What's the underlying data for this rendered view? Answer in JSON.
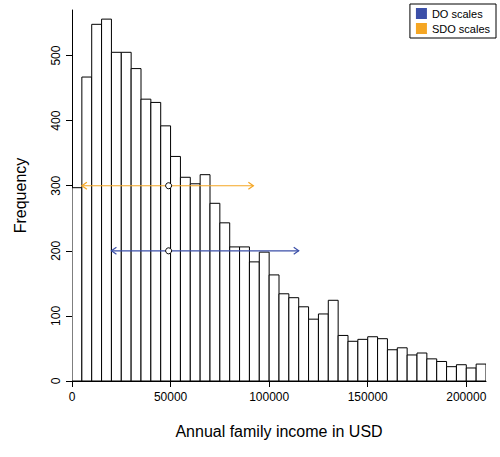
{
  "chart_data": {
    "type": "histogram",
    "x_label": "Annual family income in USD",
    "y_label": "Frequency",
    "bins": [
      0,
      5000,
      10000,
      15000,
      20000,
      25000,
      30000,
      35000,
      40000,
      45000,
      50000,
      55000,
      60000,
      65000,
      70000,
      75000,
      80000,
      85000,
      90000,
      95000,
      100000,
      105000,
      110000,
      115000,
      120000,
      125000,
      130000,
      135000,
      140000,
      145000,
      150000,
      155000,
      160000,
      165000,
      170000,
      175000,
      180000,
      185000,
      190000,
      195000,
      200000,
      205000,
      210000
    ],
    "counts": [
      297,
      467,
      548,
      556,
      505,
      505,
      480,
      433,
      428,
      392,
      345,
      313,
      303,
      317,
      273,
      243,
      206,
      206,
      183,
      198,
      163,
      134,
      128,
      114,
      95,
      103,
      124,
      70,
      61,
      64,
      68,
      65,
      48,
      51,
      40,
      43,
      34,
      30,
      22,
      25,
      20,
      26
    ],
    "intervals": [
      {
        "name": "DO scales",
        "color": "#3b4fa8",
        "y": 200,
        "low": 20000,
        "high": 115000,
        "center": 49000
      },
      {
        "name": "SDO scales",
        "color": "#f5a623",
        "y": 300,
        "low": 5000,
        "high": 92000,
        "center": 49000
      }
    ],
    "xlim": [
      0,
      210000
    ],
    "xticks": [
      0,
      50000,
      100000,
      150000,
      200000
    ],
    "ylim": [
      0,
      570
    ],
    "yticks": [
      0,
      100,
      200,
      300,
      400,
      500
    ],
    "grid": false,
    "legend": "top-right"
  }
}
